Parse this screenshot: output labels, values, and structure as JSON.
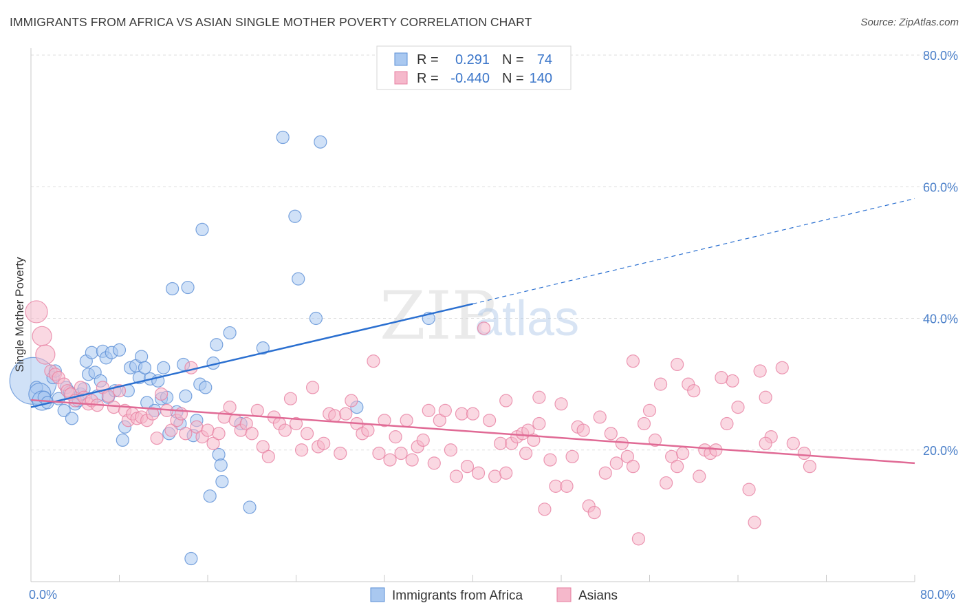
{
  "header": {
    "title": "IMMIGRANTS FROM AFRICA VS ASIAN SINGLE MOTHER POVERTY CORRELATION CHART",
    "source": "Source: ZipAtlas.com"
  },
  "watermark": {
    "zip": "ZIP",
    "atlas": "atlas"
  },
  "colors": {
    "africa_fill": "#a9c8f0",
    "africa_stroke": "#5b8fd6",
    "africa_line": "#2a6fd0",
    "asians_fill": "#f5b8cb",
    "asians_stroke": "#e77fa1",
    "asians_line": "#e06a95",
    "value_text": "#3a75c9",
    "grid": "#dedede"
  },
  "chart_data": {
    "type": "scatter",
    "title": "IMMIGRANTS FROM AFRICA VS ASIAN SINGLE MOTHER POVERTY CORRELATION CHART",
    "xlabel": "",
    "ylabel": "Single Mother Poverty",
    "xlim": [
      0,
      80
    ],
    "ylim": [
      0,
      80
    ],
    "x_tick_labels": [
      "0.0%",
      "80.0%"
    ],
    "y_tick_labels": [
      "20.0%",
      "40.0%",
      "60.0%",
      "80.0%"
    ],
    "y_ticks": [
      20,
      40,
      60,
      80
    ],
    "grid": "horizontal dashed",
    "legend": {
      "placement": "top-center",
      "rows": [
        {
          "r_label": "R =",
          "r_value": "0.291",
          "n_label": "N =",
          "n_value": "74"
        },
        {
          "r_label": "R =",
          "r_value": "-0.440",
          "n_label": "N =",
          "n_value": "140"
        }
      ]
    },
    "bottom_legend": [
      "Immigrants from Africa",
      "Asians"
    ],
    "series": [
      {
        "name": "Immigrants from Africa",
        "trend": {
          "x0": 0,
          "y0": 26.5,
          "x1": 40,
          "y1": 42.2,
          "dashed_to_x": 80,
          "dashed_to_y": 58.2
        },
        "points": [
          [
            0.2,
            30.5
          ],
          [
            0.5,
            29.5
          ],
          [
            0.8,
            28.5
          ],
          [
            1.0,
            27.5
          ],
          [
            1.2,
            28.0
          ],
          [
            1.5,
            27.2
          ],
          [
            2.0,
            31.0
          ],
          [
            2.2,
            32.0
          ],
          [
            2.5,
            27.8
          ],
          [
            3.0,
            26.0
          ],
          [
            3.2,
            29.5
          ],
          [
            3.5,
            28.8
          ],
          [
            3.7,
            24.8
          ],
          [
            4.0,
            27.0
          ],
          [
            4.3,
            27.5
          ],
          [
            4.5,
            28.5
          ],
          [
            4.8,
            29.3
          ],
          [
            5.0,
            33.5
          ],
          [
            5.2,
            31.5
          ],
          [
            5.5,
            34.8
          ],
          [
            5.8,
            31.8
          ],
          [
            6.0,
            28.2
          ],
          [
            6.3,
            30.5
          ],
          [
            6.5,
            35.0
          ],
          [
            6.8,
            34.0
          ],
          [
            7.0,
            28.0
          ],
          [
            7.3,
            34.8
          ],
          [
            7.6,
            29.0
          ],
          [
            8.0,
            35.2
          ],
          [
            8.3,
            21.5
          ],
          [
            8.5,
            23.5
          ],
          [
            8.8,
            29.0
          ],
          [
            9.0,
            32.5
          ],
          [
            9.5,
            32.8
          ],
          [
            9.8,
            31.0
          ],
          [
            10.0,
            34.2
          ],
          [
            10.3,
            32.5
          ],
          [
            10.5,
            27.2
          ],
          [
            10.8,
            30.8
          ],
          [
            11.2,
            26.0
          ],
          [
            11.5,
            30.5
          ],
          [
            11.8,
            27.8
          ],
          [
            12.0,
            32.5
          ],
          [
            12.3,
            28.0
          ],
          [
            12.5,
            22.5
          ],
          [
            12.8,
            44.5
          ],
          [
            13.2,
            25.8
          ],
          [
            13.5,
            24.0
          ],
          [
            13.8,
            33.0
          ],
          [
            14.0,
            28.2
          ],
          [
            14.2,
            44.7
          ],
          [
            14.7,
            22.2
          ],
          [
            15.0,
            24.5
          ],
          [
            15.3,
            30.0
          ],
          [
            15.5,
            53.5
          ],
          [
            15.8,
            29.5
          ],
          [
            16.2,
            13.0
          ],
          [
            16.5,
            33.2
          ],
          [
            16.8,
            36.0
          ],
          [
            17.0,
            19.3
          ],
          [
            17.2,
            17.7
          ],
          [
            17.3,
            15.2
          ],
          [
            18.0,
            37.8
          ],
          [
            19.0,
            24.0
          ],
          [
            19.8,
            11.3
          ],
          [
            21.0,
            35.5
          ],
          [
            22.8,
            67.5
          ],
          [
            23.9,
            55.5
          ],
          [
            24.2,
            46.0
          ],
          [
            25.8,
            40.0
          ],
          [
            26.2,
            66.8
          ],
          [
            29.5,
            26.5
          ],
          [
            36.0,
            40.0
          ],
          [
            14.5,
            3.5
          ]
        ],
        "sizes": {
          "0": 34,
          "2": 16,
          "3": 14
        }
      },
      {
        "name": "Asians",
        "trend": {
          "x0": 0,
          "y0": 27.6,
          "x1": 80,
          "y1": 18.0
        },
        "points": [
          [
            0.5,
            41.0
          ],
          [
            1.0,
            37.3
          ],
          [
            1.3,
            34.5
          ],
          [
            1.8,
            32.0
          ],
          [
            2.2,
            31.5
          ],
          [
            2.5,
            31.0
          ],
          [
            3.0,
            30.0
          ],
          [
            3.3,
            29.0
          ],
          [
            3.6,
            28.5
          ],
          [
            4.0,
            27.5
          ],
          [
            4.5,
            29.5
          ],
          [
            4.8,
            28.0
          ],
          [
            5.2,
            27.0
          ],
          [
            5.5,
            27.5
          ],
          [
            6.0,
            26.8
          ],
          [
            6.5,
            29.5
          ],
          [
            7.0,
            28.2
          ],
          [
            7.5,
            26.5
          ],
          [
            8.0,
            29.0
          ],
          [
            8.5,
            26.0
          ],
          [
            8.8,
            24.5
          ],
          [
            9.2,
            25.5
          ],
          [
            9.6,
            24.8
          ],
          [
            10.0,
            25.0
          ],
          [
            10.5,
            24.5
          ],
          [
            11.0,
            25.5
          ],
          [
            11.4,
            21.8
          ],
          [
            11.8,
            28.5
          ],
          [
            12.3,
            26.0
          ],
          [
            12.7,
            23.0
          ],
          [
            13.2,
            24.5
          ],
          [
            13.6,
            25.5
          ],
          [
            14.0,
            22.5
          ],
          [
            14.5,
            32.5
          ],
          [
            15.0,
            23.5
          ],
          [
            15.5,
            22.0
          ],
          [
            16.0,
            23.0
          ],
          [
            16.5,
            21.0
          ],
          [
            17.0,
            22.5
          ],
          [
            17.5,
            25.0
          ],
          [
            18.0,
            26.5
          ],
          [
            18.5,
            24.5
          ],
          [
            19.0,
            23.0
          ],
          [
            19.5,
            24.0
          ],
          [
            20.0,
            22.5
          ],
          [
            20.5,
            26.0
          ],
          [
            21.0,
            20.5
          ],
          [
            21.5,
            19.0
          ],
          [
            22.0,
            25.0
          ],
          [
            22.5,
            24.0
          ],
          [
            23.0,
            23.0
          ],
          [
            23.5,
            27.8
          ],
          [
            24.0,
            24.0
          ],
          [
            24.5,
            20.0
          ],
          [
            25.0,
            22.5
          ],
          [
            25.5,
            29.5
          ],
          [
            26.0,
            20.5
          ],
          [
            26.5,
            21.0
          ],
          [
            27.0,
            25.5
          ],
          [
            27.5,
            25.2
          ],
          [
            28.0,
            19.5
          ],
          [
            28.5,
            25.5
          ],
          [
            29.0,
            27.5
          ],
          [
            29.5,
            24.0
          ],
          [
            30.0,
            22.5
          ],
          [
            30.5,
            23.0
          ],
          [
            31.0,
            33.5
          ],
          [
            31.5,
            19.5
          ],
          [
            32.0,
            24.5
          ],
          [
            32.5,
            18.5
          ],
          [
            33.0,
            22.0
          ],
          [
            33.5,
            19.5
          ],
          [
            34.0,
            24.5
          ],
          [
            34.5,
            18.5
          ],
          [
            35.0,
            20.5
          ],
          [
            35.5,
            21.5
          ],
          [
            36.0,
            26.0
          ],
          [
            36.5,
            18.0
          ],
          [
            37.0,
            24.5
          ],
          [
            37.5,
            26.0
          ],
          [
            38.0,
            20.0
          ],
          [
            38.5,
            16.0
          ],
          [
            39.0,
            25.5
          ],
          [
            39.5,
            17.5
          ],
          [
            40.0,
            25.5
          ],
          [
            40.5,
            16.5
          ],
          [
            41.0,
            38.5
          ],
          [
            41.5,
            24.5
          ],
          [
            42.0,
            16.0
          ],
          [
            42.5,
            21.0
          ],
          [
            43.0,
            27.5
          ],
          [
            43.5,
            21.0
          ],
          [
            44.0,
            22.0
          ],
          [
            44.5,
            22.5
          ],
          [
            45.0,
            23.0
          ],
          [
            45.5,
            21.5
          ],
          [
            46.0,
            28.0
          ],
          [
            46.5,
            11.0
          ],
          [
            47.0,
            18.5
          ],
          [
            47.5,
            14.5
          ],
          [
            48.0,
            27.0
          ],
          [
            48.5,
            14.5
          ],
          [
            49.0,
            19.0
          ],
          [
            49.5,
            23.5
          ],
          [
            50.0,
            23.0
          ],
          [
            50.5,
            11.5
          ],
          [
            51.0,
            10.5
          ],
          [
            51.5,
            25.0
          ],
          [
            52.0,
            16.5
          ],
          [
            52.5,
            22.5
          ],
          [
            53.0,
            18.0
          ],
          [
            53.5,
            21.0
          ],
          [
            54.0,
            19.0
          ],
          [
            54.5,
            17.5
          ],
          [
            55.0,
            6.5
          ],
          [
            55.5,
            24.0
          ],
          [
            56.0,
            26.0
          ],
          [
            56.5,
            21.5
          ],
          [
            57.0,
            30.0
          ],
          [
            57.5,
            15.0
          ],
          [
            58.0,
            19.0
          ],
          [
            58.5,
            17.5
          ],
          [
            59.0,
            19.5
          ],
          [
            59.5,
            30.0
          ],
          [
            60.5,
            16.0
          ],
          [
            61.0,
            20.0
          ],
          [
            61.5,
            19.5
          ],
          [
            62.0,
            20.0
          ],
          [
            63.5,
            30.5
          ],
          [
            64.0,
            26.5
          ],
          [
            65.0,
            14.0
          ],
          [
            65.5,
            9.0
          ],
          [
            66.0,
            32.0
          ],
          [
            66.5,
            28.0
          ],
          [
            67.0,
            22.0
          ],
          [
            68.0,
            32.5
          ],
          [
            69.0,
            21.0
          ],
          [
            70.0,
            19.5
          ],
          [
            70.5,
            17.5
          ],
          [
            54.5,
            33.5
          ],
          [
            58.5,
            33.0
          ],
          [
            66.5,
            21.0
          ],
          [
            60.0,
            29.0
          ],
          [
            46.0,
            24.0
          ],
          [
            62.5,
            31.0
          ],
          [
            63.0,
            24.0
          ],
          [
            44.8,
            19.5
          ],
          [
            43.0,
            16.5
          ]
        ],
        "sizes": {
          "0": 16,
          "1": 14,
          "2": 14
        }
      }
    ]
  }
}
